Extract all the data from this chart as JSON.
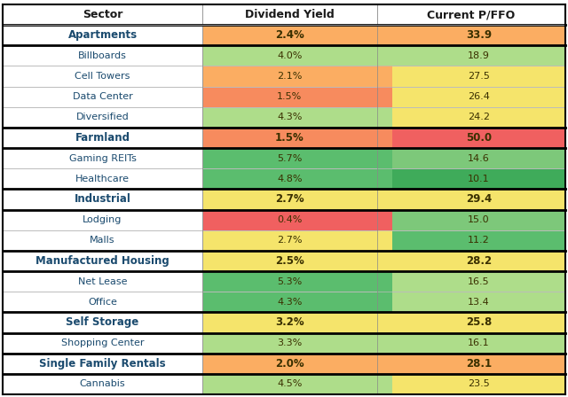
{
  "headers": [
    "Sector",
    "Dividend Yield",
    "Current P/FFO"
  ],
  "rows": [
    {
      "sector": "Apartments",
      "div_yield": "2.4%",
      "pffo": "33.9",
      "bold": true,
      "div_color": "#FBAD62",
      "pffo_color": "#FBAD62",
      "pffo_left_color": "#FBAD62",
      "thick_border": true
    },
    {
      "sector": "Billboards",
      "div_yield": "4.0%",
      "pffo": "18.9",
      "bold": false,
      "div_color": "#AEDD8A",
      "pffo_color": "#AEDD8A",
      "pffo_left_color": "#AEDD8A",
      "thick_border": false
    },
    {
      "sector": "Cell Towers",
      "div_yield": "2.1%",
      "pffo": "27.5",
      "bold": false,
      "div_color": "#FBAD62",
      "pffo_color": "#F5E46B",
      "pffo_left_color": "#FBAD62",
      "thick_border": false
    },
    {
      "sector": "Data Center",
      "div_yield": "1.5%",
      "pffo": "26.4",
      "bold": false,
      "div_color": "#F78B5E",
      "pffo_color": "#F5E46B",
      "pffo_left_color": "#F78B5E",
      "thick_border": false
    },
    {
      "sector": "Diversified",
      "div_yield": "4.3%",
      "pffo": "24.2",
      "bold": false,
      "div_color": "#AEDD8A",
      "pffo_color": "#F5E46B",
      "pffo_left_color": "#AEDD8A",
      "thick_border": false
    },
    {
      "sector": "Farmland",
      "div_yield": "1.5%",
      "pffo": "50.0",
      "bold": true,
      "div_color": "#F78B5E",
      "pffo_color": "#F06060",
      "pffo_left_color": "#F78B5E",
      "thick_border": true
    },
    {
      "sector": "Gaming REITs",
      "div_yield": "5.7%",
      "pffo": "14.6",
      "bold": false,
      "div_color": "#5BBD6E",
      "pffo_color": "#7DC87A",
      "pffo_left_color": "#5BBD6E",
      "thick_border": false
    },
    {
      "sector": "Healthcare",
      "div_yield": "4.8%",
      "pffo": "10.1",
      "bold": false,
      "div_color": "#5BBD6E",
      "pffo_color": "#3FAB5A",
      "pffo_left_color": "#5BBD6E",
      "thick_border": false
    },
    {
      "sector": "Industrial",
      "div_yield": "2.7%",
      "pffo": "29.4",
      "bold": true,
      "div_color": "#F5E46B",
      "pffo_color": "#F5E46B",
      "pffo_left_color": "#F5E46B",
      "thick_border": true
    },
    {
      "sector": "Lodging",
      "div_yield": "0.4%",
      "pffo": "15.0",
      "bold": false,
      "div_color": "#F06060",
      "pffo_color": "#7DC87A",
      "pffo_left_color": "#F06060",
      "thick_border": false
    },
    {
      "sector": "Malls",
      "div_yield": "2.7%",
      "pffo": "11.2",
      "bold": false,
      "div_color": "#F5E46B",
      "pffo_color": "#5BBD6E",
      "pffo_left_color": "#F5E46B",
      "thick_border": false
    },
    {
      "sector": "Manufactured Housing",
      "div_yield": "2.5%",
      "pffo": "28.2",
      "bold": true,
      "div_color": "#F5E46B",
      "pffo_color": "#F5E46B",
      "pffo_left_color": "#F5E46B",
      "thick_border": true
    },
    {
      "sector": "Net Lease",
      "div_yield": "5.3%",
      "pffo": "16.5",
      "bold": false,
      "div_color": "#5BBD6E",
      "pffo_color": "#AEDD8A",
      "pffo_left_color": "#5BBD6E",
      "thick_border": false
    },
    {
      "sector": "Office",
      "div_yield": "4.3%",
      "pffo": "13.4",
      "bold": false,
      "div_color": "#5BBD6E",
      "pffo_color": "#AEDD8A",
      "pffo_left_color": "#5BBD6E",
      "thick_border": false
    },
    {
      "sector": "Self Storage",
      "div_yield": "3.2%",
      "pffo": "25.8",
      "bold": true,
      "div_color": "#F5E46B",
      "pffo_color": "#F5E46B",
      "pffo_left_color": "#F5E46B",
      "thick_border": true
    },
    {
      "sector": "Shopping Center",
      "div_yield": "3.3%",
      "pffo": "16.1",
      "bold": false,
      "div_color": "#AEDD8A",
      "pffo_color": "#AEDD8A",
      "pffo_left_color": "#AEDD8A",
      "thick_border": false
    },
    {
      "sector": "Single Family Rentals",
      "div_yield": "2.0%",
      "pffo": "28.1",
      "bold": true,
      "div_color": "#FBAD62",
      "pffo_color": "#FBAD62",
      "pffo_left_color": "#FBAD62",
      "thick_border": true
    },
    {
      "sector": "Cannabis",
      "div_yield": "4.5%",
      "pffo": "23.5",
      "bold": false,
      "div_color": "#AEDD8A",
      "pffo_color": "#F5E46B",
      "pffo_left_color": "#AEDD8A",
      "thick_border": false
    }
  ],
  "header_text_color": "#1A1A1A",
  "sector_text_color": "#1A4A6E",
  "value_text_color": "#3A3000",
  "fig_width": 6.4,
  "fig_height": 4.48,
  "dpi": 100
}
